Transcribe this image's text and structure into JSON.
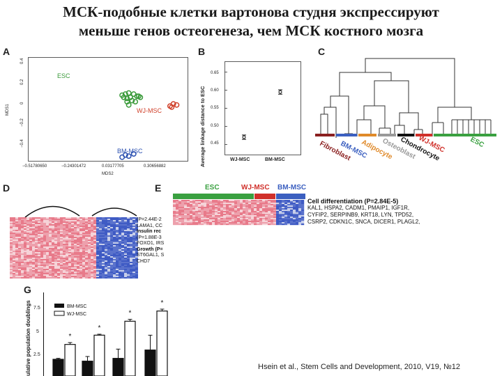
{
  "title": {
    "line1": "МСК-подобные клетки вартонова студня экспрессируют",
    "line2": "меньше генов остеогенеза, чем МСК костного мозга"
  },
  "panel_labels": {
    "a": "A",
    "b": "B",
    "c": "C",
    "d": "D",
    "e": "E",
    "g": "G"
  },
  "colors": {
    "esc": "#3a9a3a",
    "wj": "#d0402a",
    "bm": "#2a4fb0",
    "heat_red": "#e87a8a",
    "heat_blue": "#3f5bc4"
  },
  "panel_a": {
    "ylabel": "MDS1",
    "xlabel": "MDS2",
    "yticks": [
      "0.4",
      "0.2",
      "0",
      "−0.2",
      "−0.4"
    ],
    "xticks": [
      "−0.51780650",
      "−0.24301472",
      "0.03177705",
      "0.30656882"
    ],
    "groups": {
      "esc": "ESC",
      "wj": "WJ-MSC",
      "bm": "BM-MSC"
    }
  },
  "panel_b": {
    "ylabel": "Average linkage distance to ESC",
    "yticks": [
      "0.65",
      "0.60",
      "0.55",
      "0.50",
      "0.45"
    ],
    "categories": [
      "WJ-MSC",
      "BM-MSC"
    ]
  },
  "panel_c": {
    "labels": [
      "Fibroblast",
      "BM-MSC",
      "Adipocyte",
      "Osteoblast",
      "Chondrocyte",
      "WJ-MSC",
      "ESC"
    ]
  },
  "panel_d": {
    "lines": [
      "(P=2.44E-2",
      "LAMA1, CC",
      "Insulin rec",
      "(P=1.88E-3",
      "FOXO1, IRS",
      "Growth (P=",
      "ST6GAL1, S",
      "CHD7"
    ]
  },
  "panel_e": {
    "headers": {
      "esc": "ESC",
      "wj": "WJ-MSC",
      "bm": "BM-MSC"
    },
    "heading": "Cell differentiation (P=2.84E-5)",
    "genes": [
      "KAL1, HSPA2, CADM1, PMAIP1, IGF1R,",
      "CYFIP2, SERPINB9, KRT18, LYN, TPD52,",
      "CSRP2, CDKN1C, SNCA, DICER1, PLAGL2,"
    ]
  },
  "panel_g": {
    "ylabel": "ulative population doublings",
    "yticks": [
      "7.5",
      "5",
      "2.5"
    ],
    "legend": [
      "BM-MSC",
      "WJ-MSC"
    ],
    "significance_marker": "*"
  },
  "chart_data": [
    {
      "type": "scatter",
      "panel": "A",
      "xlabel": "MDS2",
      "ylabel": "MDS1",
      "series": [
        {
          "name": "ESC",
          "color": "#3a9a3a",
          "x": [
            0.02,
            0.04,
            0.06,
            0.05,
            0.07,
            0.09,
            0.11,
            0.13,
            0.05,
            0.08,
            0.1,
            0.03,
            0.06,
            0.12
          ],
          "y": [
            0.11,
            0.12,
            0.13,
            0.08,
            0.09,
            0.12,
            0.1,
            0.09,
            0.05,
            0.06,
            0.05,
            0.09,
            0.02,
            0.1
          ]
        },
        {
          "name": "WJ-MSC",
          "color": "#d0402a",
          "x": [
            0.31,
            0.33,
            0.35,
            0.32
          ],
          "y": [
            0.01,
            0.03,
            0.02,
            0.0
          ]
        },
        {
          "name": "BM-MSC",
          "color": "#2a4fb0",
          "x": [
            0.02,
            0.04,
            0.06,
            0.09
          ],
          "y": [
            -0.46,
            -0.44,
            -0.45,
            -0.43
          ]
        }
      ]
    },
    {
      "type": "scatter",
      "panel": "B",
      "ylabel": "Average linkage distance to ESC",
      "categories": [
        "WJ-MSC",
        "BM-MSC"
      ],
      "values": [
        0.47,
        0.595
      ],
      "errors": [
        0.006,
        0.006
      ],
      "ylim": [
        0.42,
        0.68
      ]
    },
    {
      "type": "bar",
      "panel": "G",
      "legend": [
        "BM-MSC",
        "WJ-MSC"
      ],
      "series": [
        {
          "name": "BM-MSC",
          "values": [
            1.8,
            1.6,
            1.9,
            2.8
          ],
          "errors": [
            0.1,
            0.5,
            1.0,
            1.6
          ]
        },
        {
          "name": "WJ-MSC",
          "values": [
            3.4,
            4.4,
            5.9,
            7.0
          ],
          "errors": [
            0.2,
            0.1,
            0.2,
            0.2
          ]
        }
      ],
      "significance": [
        "*",
        "*",
        "*",
        "*"
      ],
      "ylim": [
        0,
        9
      ]
    }
  ],
  "citation": "Hsein et al., Stem Cells and Development, 2010, V19, №12"
}
